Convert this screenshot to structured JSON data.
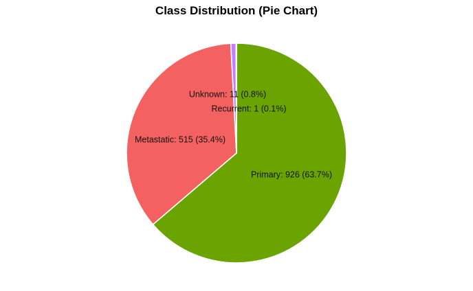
{
  "chart_data": {
    "type": "pie",
    "title": "Class Distribution (Pie Chart)",
    "start": "top",
    "direction": "clockwise",
    "legend": "none",
    "slices": [
      {
        "label": "Primary",
        "value": 926,
        "percent": "63.7%",
        "color": "#6ba400",
        "text": "Primary: 926 (63.7%)"
      },
      {
        "label": "Metastatic",
        "value": 515,
        "percent": "35.4%",
        "color": "#f36160",
        "text": "Metastatic: 515 (35.4%)"
      },
      {
        "label": "Unknown",
        "value": 11,
        "percent": "0.8%",
        "color": "#c77cff",
        "text": "Unknown: 11 (0.8%)"
      },
      {
        "label": "Recurrent",
        "value": 1,
        "percent": "0.1%",
        "color": "#00bfc4",
        "text": "Recurrent: 1 (0.1%)"
      }
    ]
  }
}
